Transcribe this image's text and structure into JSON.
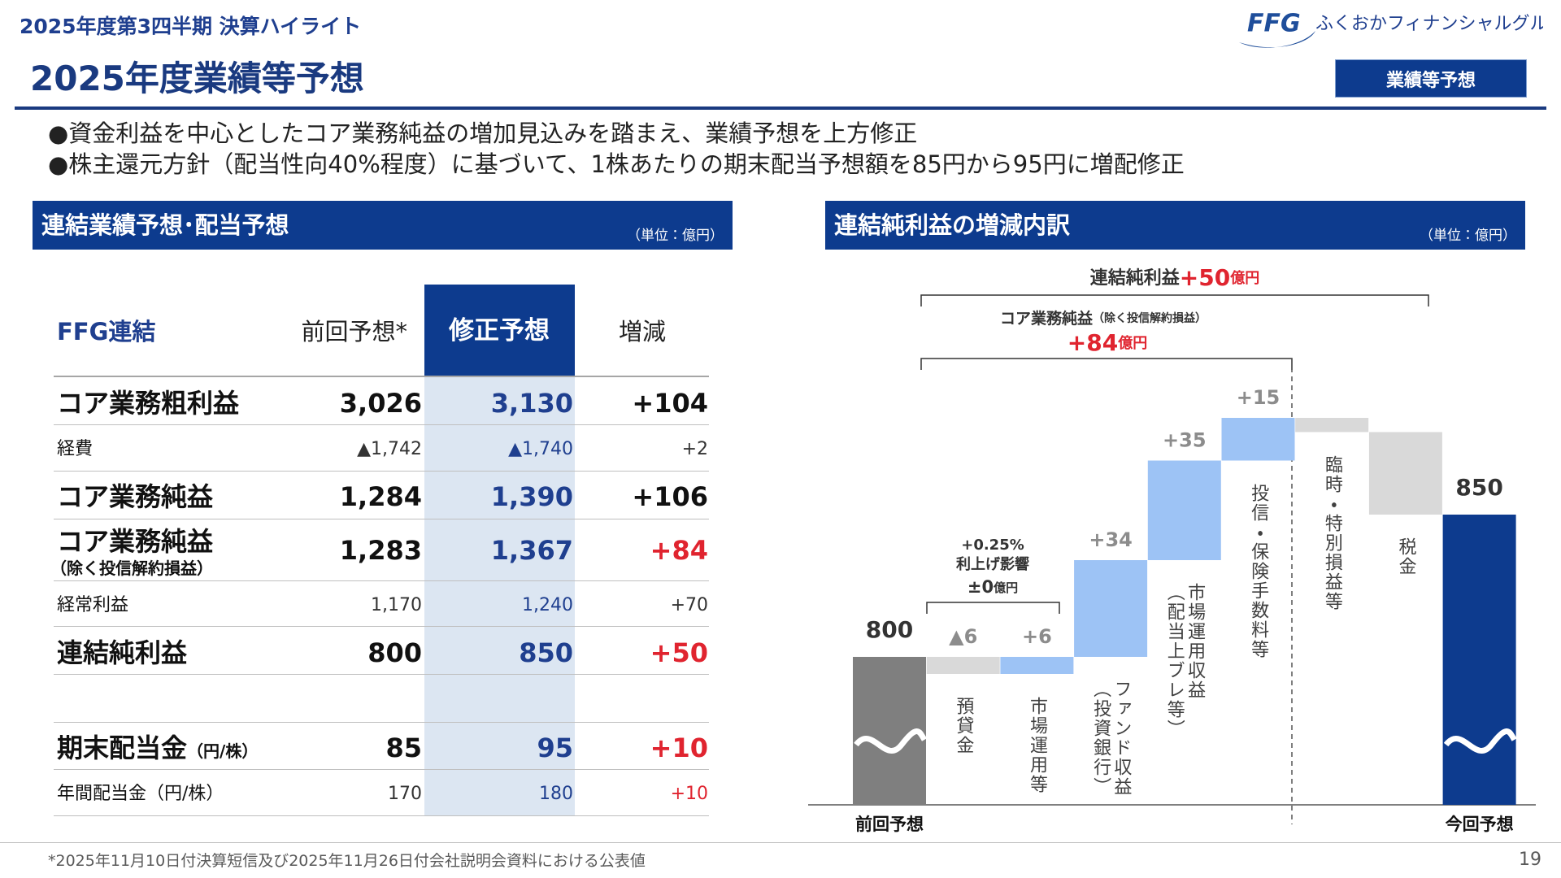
{
  "header": {
    "subtitle": "2025年度第3四半期 決算ハイライト",
    "logo_mark": "FFG",
    "logo_text": "ふくおかフィナンシャルグループ",
    "title": "2025年度業績等予想",
    "tag": "業績等予想"
  },
  "bullets": [
    "●資金利益を中心としたコア業務純益の増加見込みを踏まえ、業績予想を上方修正",
    "●株主還元方針（配当性向40%程度）に基づいて、1株あたりの期末配当予想額を85円から95円に増配修正"
  ],
  "table": {
    "title": "連結業績予想･配当予想",
    "unit": "（単位：億円）",
    "header": [
      "FFG連結",
      "前回予想*",
      "修正予想",
      "増減"
    ],
    "rows": [
      {
        "label": "コア業務粗利益",
        "values": [
          "3,026",
          "3,130",
          "+104"
        ]
      },
      {
        "label": "経費",
        "values": [
          "▲1,742",
          "▲1,740",
          "+2"
        ]
      },
      {
        "label": "コア業務純益",
        "values": [
          "1,284",
          "1,390",
          "+106"
        ]
      },
      {
        "label": "コア業務純益",
        "note": "（除く投信解約損益）",
        "values": [
          "1,283",
          "1,367",
          "+84"
        ],
        "change_color": "#e0242f"
      },
      {
        "label": "経常利益",
        "values": [
          "1,170",
          "1,240",
          "+70"
        ]
      },
      {
        "label": "連結純利益",
        "values": [
          "800",
          "850",
          "+50"
        ],
        "change_color": "#e0242f"
      },
      {
        "label": "期末配当金",
        "note": "（円/株）",
        "values": [
          "85",
          "95",
          "+10"
        ],
        "change_color": "#e0242f"
      },
      {
        "label": "年間配当金（円/株）",
        "values": [
          "170",
          "180",
          "+10"
        ],
        "change_color": "#e0242f"
      }
    ]
  },
  "waterfall": {
    "type": "waterfall",
    "title": "連結純利益の増減内訳",
    "unit": "（単位：億円）",
    "total_note": {
      "label": "連結純利益",
      "value": "+50",
      "unit": "億円"
    },
    "core_note": {
      "label": "コア業務純益",
      "qualifier": "（除く投信解約損益）",
      "value": "+84",
      "unit": "億円"
    },
    "rate_note": {
      "lines": [
        "+0.25%",
        "利上げ影響"
      ],
      "value": "±0",
      "unit": "億円"
    },
    "categories": [
      [
        "前回予想"
      ],
      [
        "預貸金"
      ],
      [
        "市場運用等"
      ],
      [
        "ファンド収益",
        "（投資銀行）"
      ],
      [
        "市場運用収益",
        "（配当上ブレ等）"
      ],
      [
        "投信・保険手数料等"
      ],
      [
        "臨時・特別損益等"
      ],
      [
        "税金"
      ],
      [
        "今回予想"
      ]
    ],
    "values": [
      800,
      -6,
      6,
      34,
      35,
      15,
      -5,
      -29,
      850
    ],
    "value_labels": [
      "800",
      "▲6",
      "+6",
      "+34",
      "+35",
      "+15",
      null,
      null,
      "850"
    ],
    "colors": [
      "#7f7f7f",
      "#d9d9d9",
      "#9dc3f5",
      "#9dc3f5",
      "#9dc3f5",
      "#9dc3f5",
      "#d9d9d9",
      "#d9d9d9",
      "#0d3b8e"
    ],
    "ylim": [
      748,
      900
    ]
  },
  "footer": {
    "note": "*2025年11月10日付決算短信及び2025年11月26日付会社説明会資料における公表値",
    "page": "19"
  }
}
